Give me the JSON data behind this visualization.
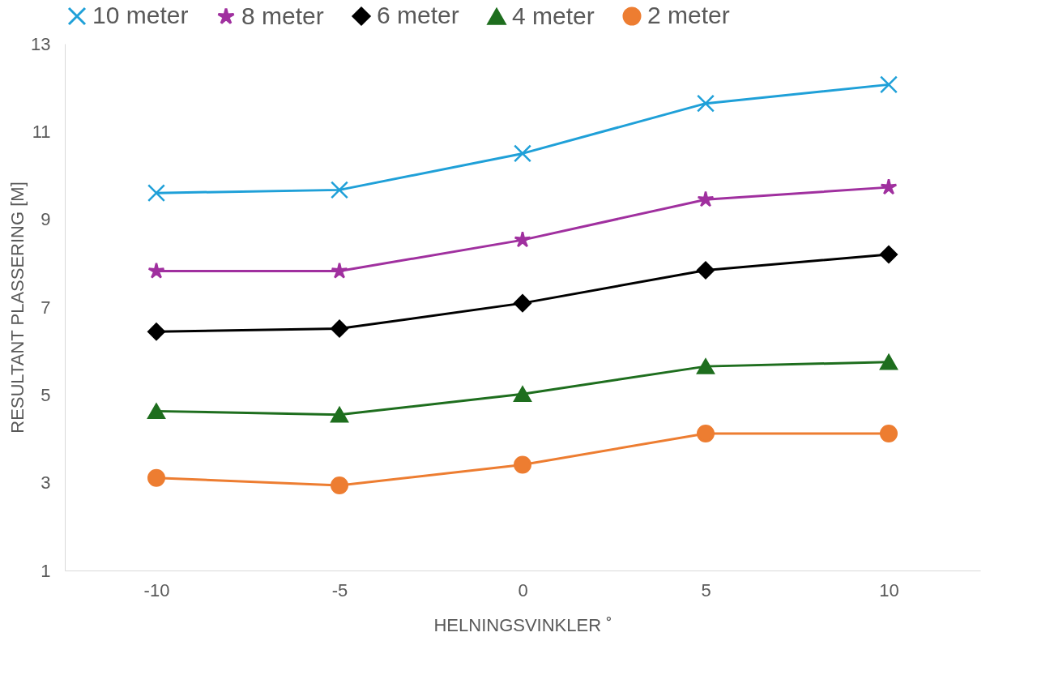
{
  "chart_data": {
    "type": "line",
    "xlabel": "HELNINGSVINKLER ˚",
    "ylabel": "RESULTANT PLASSERING [M]",
    "categories": [
      "-10",
      "-5",
      "0",
      "5",
      "10"
    ],
    "ylim": [
      1,
      13
    ],
    "yticks": [
      1,
      3,
      5,
      7,
      9,
      11,
      13
    ],
    "grid": false,
    "legend": "top",
    "line_style": "solid",
    "series": [
      {
        "name": "10 meter",
        "color": "#1fa0d8",
        "marker": "cross",
        "values": [
          9.6,
          9.67,
          10.5,
          11.64,
          12.07
        ]
      },
      {
        "name": "8 meter",
        "color": "#a0309f",
        "marker": "star",
        "values": [
          7.82,
          7.82,
          8.53,
          9.45,
          9.73
        ]
      },
      {
        "name": "6 meter",
        "color": "#000000",
        "marker": "diamond",
        "values": [
          6.44,
          6.51,
          7.09,
          7.84,
          8.2
        ]
      },
      {
        "name": "4 meter",
        "color": "#1e6e1e",
        "marker": "triangle",
        "values": [
          4.63,
          4.55,
          5.02,
          5.65,
          5.75
        ]
      },
      {
        "name": "2 meter",
        "color": "#ed7d31",
        "marker": "circle",
        "values": [
          3.11,
          2.94,
          3.41,
          4.12,
          4.12
        ]
      }
    ]
  }
}
